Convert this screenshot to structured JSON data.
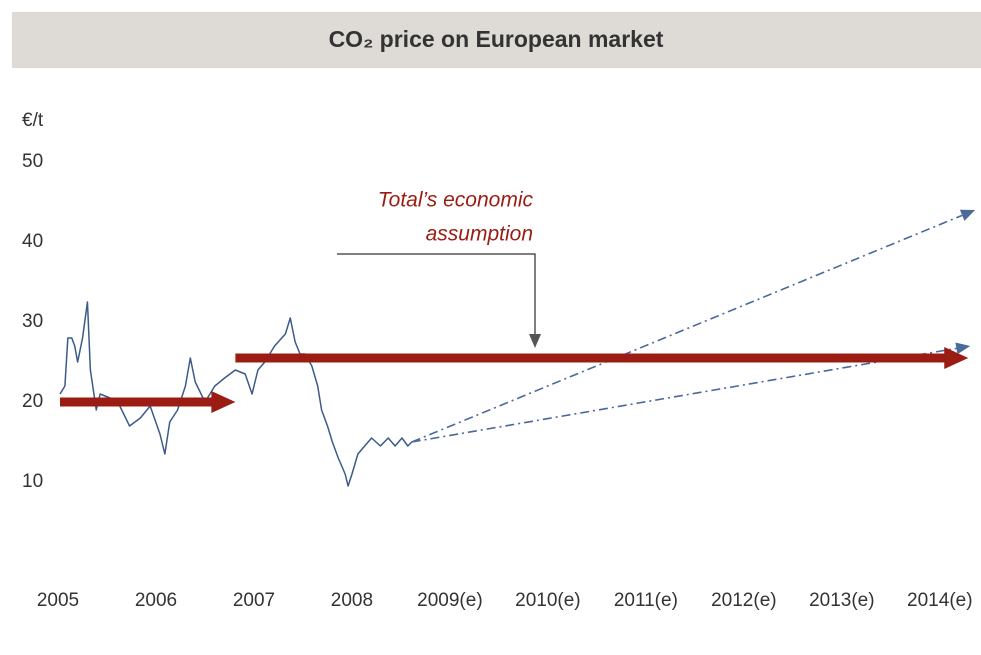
{
  "chart_data": {
    "type": "line",
    "title": "CO₂ price on European market",
    "y_label": "€/t",
    "annotation": [
      "Total’s economic",
      "assumption"
    ],
    "xlim": [
      2004.51,
      2014.4
    ],
    "ylim": [
      0,
      55
    ],
    "yticks": [
      10,
      20,
      30,
      40,
      50
    ],
    "xticks": [
      {
        "value": 2005,
        "label": "2005"
      },
      {
        "value": 2006,
        "label": "2006"
      },
      {
        "value": 2007,
        "label": "2007"
      },
      {
        "value": 2008,
        "label": "2008"
      },
      {
        "value": 2009,
        "label": "2009(e)"
      },
      {
        "value": 2010,
        "label": "2010(e)"
      },
      {
        "value": 2011,
        "label": "2011(e)"
      },
      {
        "value": 2012,
        "label": "2012(e)"
      },
      {
        "value": 2013,
        "label": "2013(e)"
      },
      {
        "value": 2014,
        "label": "2014(e)"
      }
    ],
    "series": [
      {
        "color": "#3b5b8a",
        "style": "solid",
        "x": [
          2005.0,
          2005.05,
          2005.08,
          2005.12,
          2005.15,
          2005.18,
          2005.23,
          2005.28,
          2005.31,
          2005.34,
          2005.37,
          2005.41,
          2005.51,
          2005.61,
          2005.71,
          2005.82,
          2005.92,
          2006.02,
          2006.07,
          2006.12,
          2006.2,
          2006.28,
          2006.33,
          2006.38,
          2006.48,
          2006.58,
          2006.68,
          2006.79,
          2006.89,
          2006.96,
          2007.02,
          2007.09,
          2007.19,
          2007.3,
          2007.35,
          2007.4,
          2007.45,
          2007.5,
          2007.57,
          2007.63,
          2007.67,
          2007.73,
          2007.78,
          2007.84,
          2007.91,
          2007.94,
          2007.98,
          2008.04,
          2008.11,
          2008.18,
          2008.27,
          2008.35,
          2008.42,
          2008.49,
          2008.55,
          2008.59
        ],
        "values": [
          21,
          22,
          28,
          28,
          27,
          25,
          28,
          32.5,
          24,
          21.5,
          19,
          21,
          20.5,
          19.5,
          17,
          18,
          19.5,
          16,
          13.5,
          17.5,
          19,
          22,
          25.5,
          22.5,
          20,
          22,
          23,
          24,
          23.5,
          21,
          24,
          25,
          27,
          28.5,
          30.5,
          27.5,
          26,
          26,
          24.5,
          22,
          19,
          17,
          15,
          13,
          11,
          9.5,
          11,
          13.5,
          14.5,
          15.5,
          14.5,
          15.5,
          14.5,
          15.5,
          14.5,
          15
        ]
      },
      {
        "color": "#4a6a9a",
        "style": "dashdot",
        "x": [
          2008.59,
          2014.34
        ],
        "values": [
          15,
          44
        ]
      },
      {
        "color": "#4a6a9a",
        "style": "dashdot",
        "x": [
          2008.59,
          2014.29
        ],
        "values": [
          15,
          27
        ]
      },
      {
        "color": "#9b1c12",
        "style": "arrow",
        "x": [
          2005.0,
          2006.79
        ],
        "values": [
          20,
          20
        ]
      },
      {
        "color": "#9b1c12",
        "style": "arrow",
        "x": [
          2006.79,
          2014.27
        ],
        "values": [
          25.5,
          25.5
        ]
      }
    ]
  }
}
